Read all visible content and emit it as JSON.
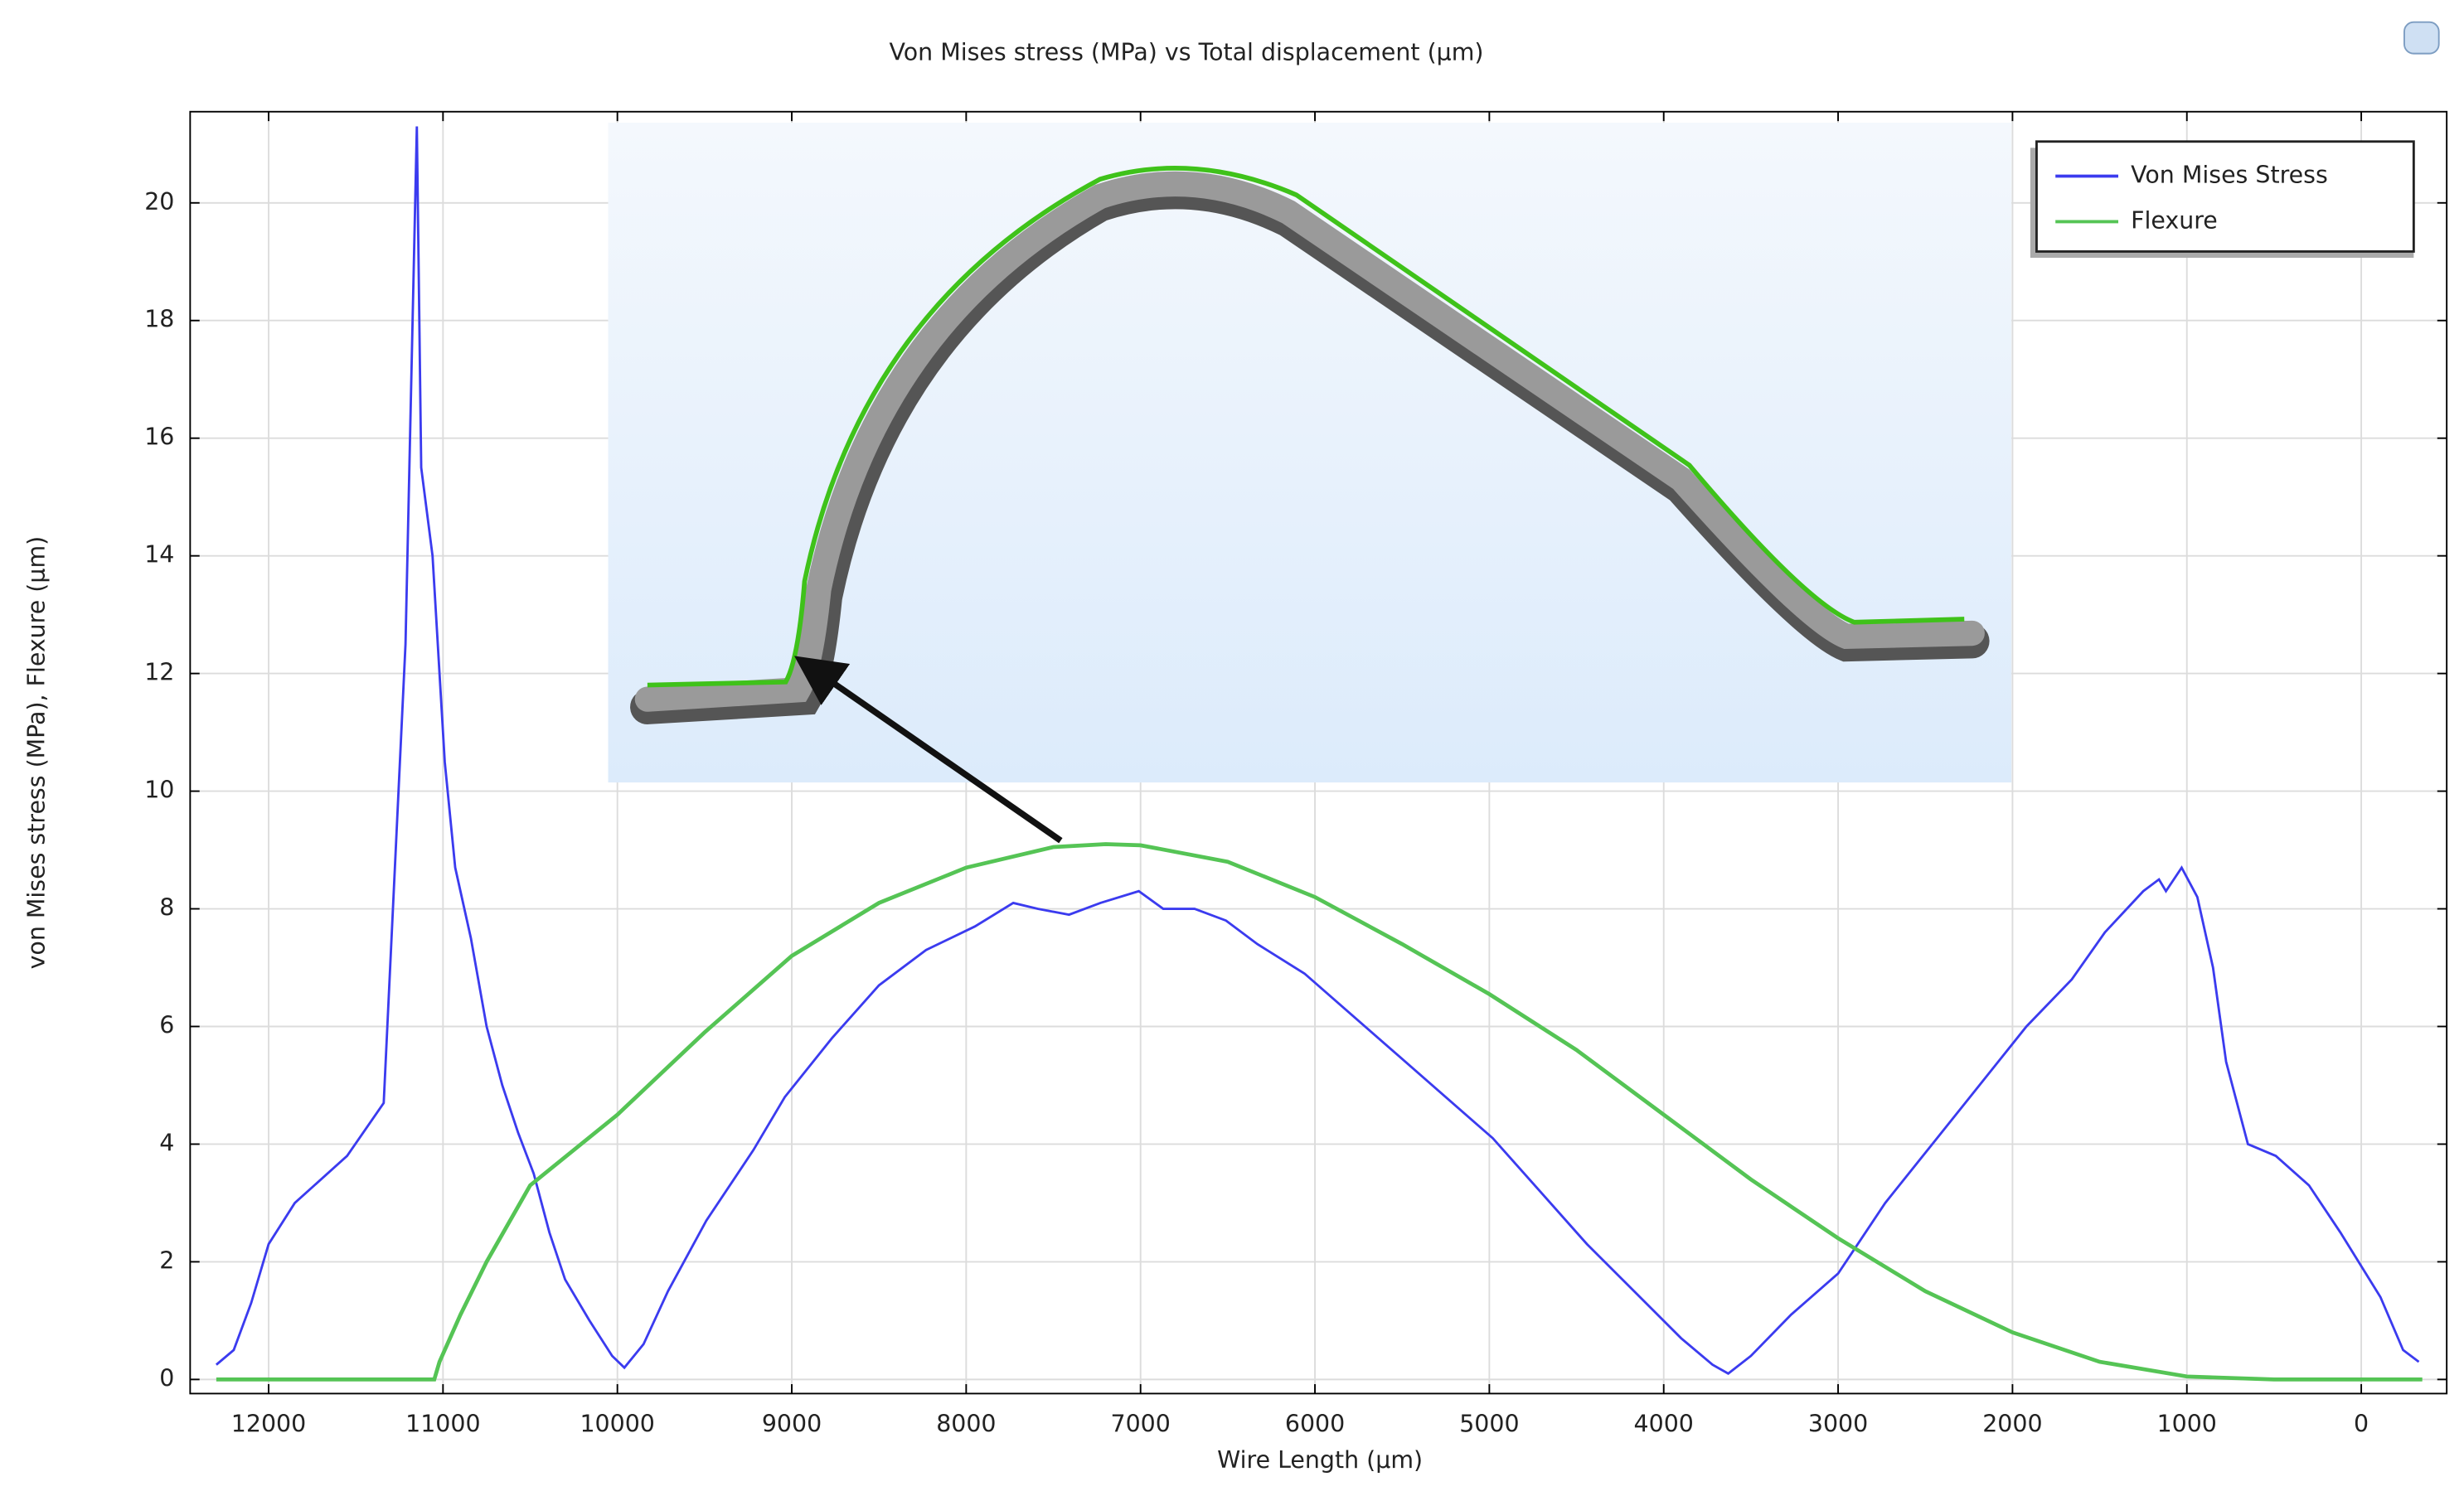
{
  "chart_data": {
    "type": "line",
    "title": "Von Mises stress (MPa) vs Total displacement (µm)",
    "xlabel": "Wire Length (µm)",
    "ylabel": "von Mises stress (MPa),  Flexure (µm)",
    "xlim": [
      12450,
      -490
    ],
    "ylim": [
      -0.24,
      21.55
    ],
    "xticks": [
      12000,
      11000,
      10000,
      9000,
      8000,
      7000,
      6000,
      5000,
      4000,
      3000,
      2000,
      1000,
      0
    ],
    "yticks": [
      0,
      2,
      4,
      6,
      8,
      10,
      12,
      14,
      16,
      18,
      20
    ],
    "grid": true,
    "legend": "upper right",
    "series": [
      {
        "name": "Von Mises Stress",
        "color": "#3b3bef",
        "x": [
          12300,
          12200,
          12100,
          12000,
          11850,
          11700,
          11550,
          11340,
          11215,
          11150,
          11125,
          11060,
          10990,
          10930,
          10840,
          10750,
          10660,
          10570,
          10480,
          10390,
          10300,
          10160,
          10030,
          9960,
          9850,
          9710,
          9490,
          9220,
          9040,
          8770,
          8500,
          8230,
          7950,
          7730,
          7590,
          7410,
          7230,
          7010,
          6870,
          6690,
          6510,
          6330,
          6060,
          5790,
          5520,
          5250,
          4980,
          4710,
          4440,
          4170,
          3900,
          3720,
          3630,
          3500,
          3270,
          3000,
          2730,
          2460,
          2190,
          1920,
          1660,
          1470,
          1250,
          1160,
          1120,
          1030,
          940,
          850,
          775,
          650,
          490,
          300,
          120,
          -110,
          -240,
          -330
        ],
        "values": [
          0.25,
          0.5,
          1.3,
          2.3,
          3.0,
          3.4,
          3.8,
          4.7,
          12.5,
          21.3,
          15.5,
          14,
          10.5,
          8.7,
          7.5,
          6,
          5,
          4.2,
          3.5,
          2.5,
          1.7,
          1,
          0.4,
          0.2,
          0.6,
          1.5,
          2.7,
          3.9,
          4.8,
          5.8,
          6.7,
          7.3,
          7.7,
          8.1,
          8.0,
          7.9,
          8.1,
          8.3,
          8.0,
          8.0,
          7.8,
          7.4,
          6.9,
          6.2,
          5.5,
          4.8,
          4.1,
          3.2,
          2.3,
          1.5,
          0.7,
          0.25,
          0.1,
          0.4,
          1.1,
          1.8,
          3.0,
          4.0,
          5.0,
          6.0,
          6.8,
          7.6,
          8.3,
          8.5,
          8.3,
          8.7,
          8.2,
          7.0,
          5.4,
          4.0,
          3.8,
          3.3,
          2.5,
          1.4,
          0.5,
          0.3
        ]
      },
      {
        "name": "Flexure",
        "color": "#55c455",
        "x": [
          12300,
          11500,
          11050,
          11020,
          10900,
          10750,
          10500,
          10000,
          9500,
          9000,
          8500,
          8000,
          7500,
          7200,
          7000,
          6500,
          6000,
          5500,
          5000,
          4500,
          4000,
          3500,
          3000,
          2500,
          2000,
          1500,
          1000,
          500,
          0,
          -350
        ],
        "values": [
          0,
          0,
          0,
          0.3,
          1.1,
          2.0,
          3.3,
          4.5,
          5.9,
          7.2,
          8.1,
          8.7,
          9.05,
          9.1,
          9.08,
          8.8,
          8.2,
          7.4,
          6.55,
          5.6,
          4.5,
          3.4,
          2.4,
          1.5,
          0.8,
          0.3,
          0.05,
          0,
          0,
          0
        ]
      }
    ]
  }
}
